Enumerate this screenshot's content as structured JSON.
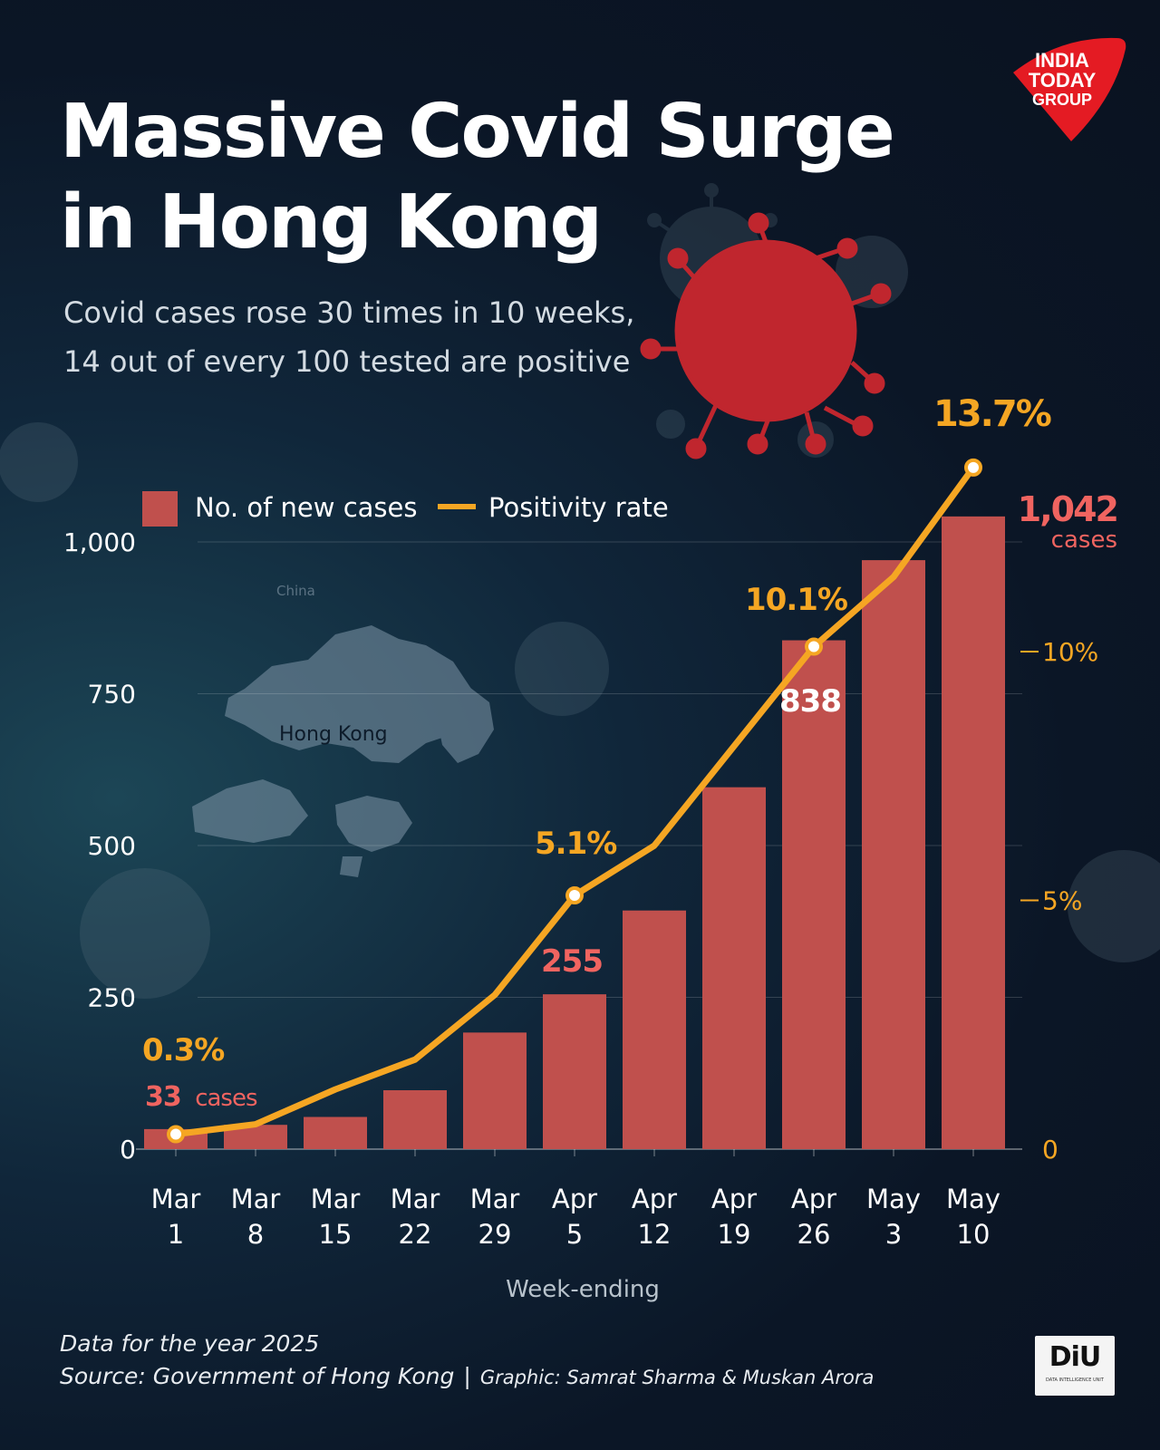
{
  "header": {
    "title_line1": "Massive Covid Surge",
    "title_line2": "in Hong Kong",
    "subtitle_line1": "Covid cases rose 30 times in 10 weeks,",
    "subtitle_line2": "14 out of every 100 tested are positive"
  },
  "logo": {
    "line1": "INDIA",
    "line2": "TODAY",
    "line3": "GROUP",
    "color": "#e41b23"
  },
  "map": {
    "label_china": "China",
    "label_hk": "Hong Kong"
  },
  "chart_data": {
    "type": "bar",
    "categories": [
      "Mar 1",
      "Mar 8",
      "Mar 15",
      "Mar 22",
      "Mar 29",
      "Apr 5",
      "Apr 12",
      "Apr 19",
      "Apr 26",
      "May 3",
      "May 10"
    ],
    "xlabel": "Week-ending",
    "ylim": [
      0,
      1000
    ],
    "yticks": [
      0,
      250,
      500,
      750,
      1000
    ],
    "ytick_labels": [
      "0",
      "250",
      "500",
      "750",
      "1,000"
    ],
    "y2lim": [
      0,
      15
    ],
    "y2ticks": [
      0,
      5,
      10
    ],
    "y2tick_labels": [
      "0",
      "5%",
      "10%"
    ],
    "legend": {
      "placement": "top-left",
      "bar_label": "No. of new cases",
      "line_label": "Positivity rate"
    },
    "bar_color": "#c0504d",
    "line_color": "#f5a623",
    "series": [
      {
        "name": "No. of new cases",
        "type": "bar",
        "values": [
          33,
          40,
          53,
          97,
          192,
          255,
          393,
          596,
          838,
          970,
          1042
        ]
      },
      {
        "name": "Positivity rate",
        "type": "line",
        "values": [
          0.3,
          0.5,
          1.2,
          1.8,
          3.1,
          5.1,
          6.1,
          8.1,
          10.1,
          11.5,
          13.7
        ]
      }
    ],
    "annotations": {
      "first_rate": "0.3%",
      "first_cases": "33",
      "first_cases_unit": "cases",
      "apr5_rate": "5.1%",
      "apr5_cases": "255",
      "apr26_rate": "10.1%",
      "apr26_cases": "838",
      "last_rate": "13.7%",
      "last_cases": "1,042",
      "last_cases_unit": "cases"
    }
  },
  "footer": {
    "note": "Data for the year 2025",
    "source": "Source: Government of Hong Kong",
    "separator": "|",
    "graphic": "Graphic: Samrat Sharma & Muskan Arora"
  },
  "diu_logo": {
    "text": "DiU",
    "subtext": "DATA INTELLIGENCE UNIT"
  }
}
